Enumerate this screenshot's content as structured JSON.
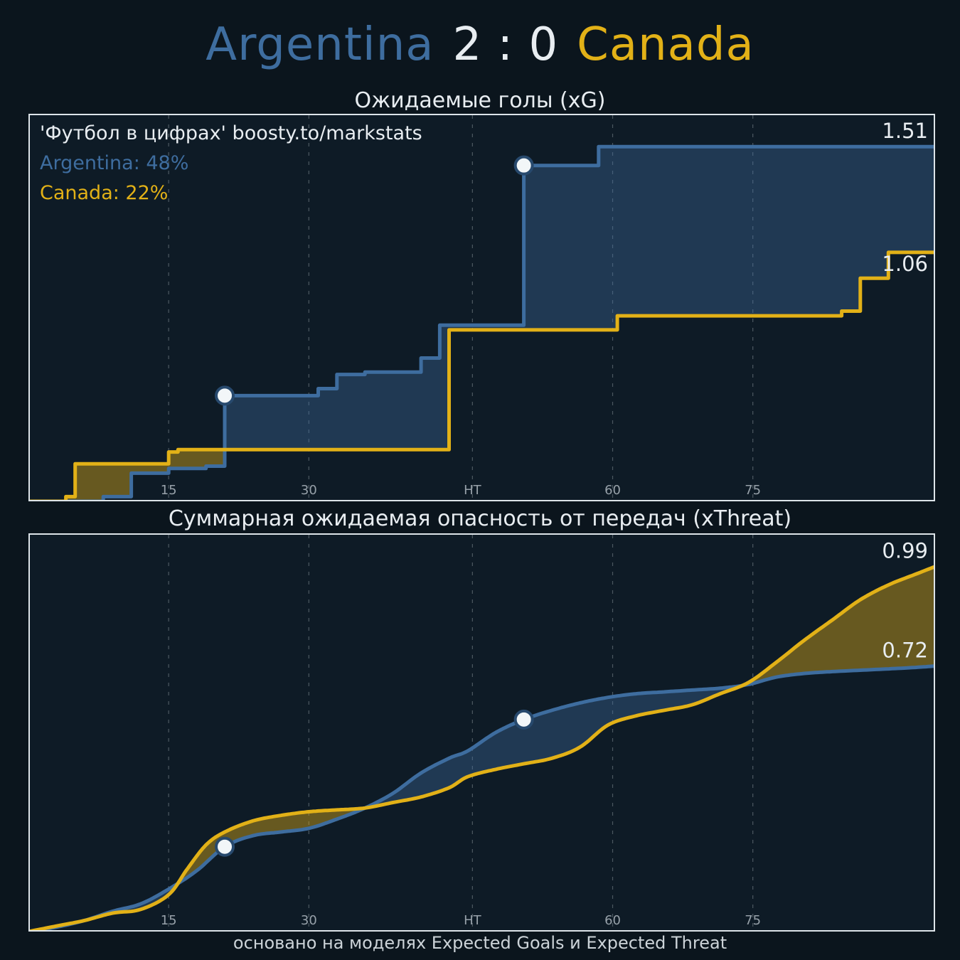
{
  "header": {
    "home_team": "Argentina",
    "score": "2 : 0",
    "away_team": "Canada"
  },
  "watermark": "'Футбол в цифрах' boosty.to/markstats",
  "legend": {
    "home": "Argentina: 48%",
    "away": "Canada: 22%"
  },
  "footer": "основано на моделях Expected Goals и Expected Threat",
  "colors": {
    "background": "#0b151d",
    "plot_background": "#0e1b26",
    "plot_border": "#dde4e9",
    "home": "#3e6d9f",
    "away": "#e2b117",
    "home_fill": "rgba(62,109,159,0.38)",
    "away_fill": "rgba(226,177,23,0.42)",
    "text": "#e8edf1",
    "muted_text": "#97a1a9",
    "footer_text": "#ccd3d8",
    "grid": "#8b959d",
    "marker_fill": "#f2f6f8",
    "marker_stroke": "#27496d"
  },
  "chart_data": [
    {
      "type": "area",
      "style": "step",
      "title": "Ожидаемые голы (xG)",
      "xlabel": "",
      "ylabel": "",
      "x_range": [
        0,
        97
      ],
      "y_range": [
        0,
        1.65
      ],
      "grid": "vertical-dashed",
      "legend_position": "top-left",
      "x_ticks": {
        "positions": [
          15,
          30,
          47.5,
          62.5,
          77.5
        ],
        "labels": [
          "15",
          "30",
          "HT",
          "60",
          "75"
        ]
      },
      "series": [
        {
          "name": "Argentina",
          "final_label": "1.51",
          "label_dy": -12,
          "points": [
            [
              0,
              0
            ],
            [
              8,
              0.02
            ],
            [
              11,
              0.12
            ],
            [
              15,
              0.14
            ],
            [
              19,
              0.15
            ],
            [
              21,
              0.45
            ],
            [
              31,
              0.48
            ],
            [
              33,
              0.54
            ],
            [
              36,
              0.55
            ],
            [
              42,
              0.61
            ],
            [
              44,
              0.75
            ],
            [
              53,
              1.43
            ],
            [
              61,
              1.51
            ]
          ]
        },
        {
          "name": "Canada",
          "final_label": "1.06",
          "label_dy": 26,
          "points": [
            [
              0,
              0
            ],
            [
              4,
              0.02
            ],
            [
              5,
              0.16
            ],
            [
              15,
              0.21
            ],
            [
              16,
              0.22
            ],
            [
              45,
              0.73
            ],
            [
              63,
              0.79
            ],
            [
              87,
              0.81
            ],
            [
              89,
              0.95
            ],
            [
              92,
              1.06
            ]
          ]
        }
      ],
      "goal_markers": [
        [
          21,
          0.45
        ],
        [
          53,
          1.43
        ]
      ]
    },
    {
      "type": "area",
      "style": "smooth",
      "title": "Суммарная ожидаемая опасность от передач (xThreat)",
      "xlabel": "",
      "ylabel": "",
      "x_range": [
        0,
        97
      ],
      "y_range": [
        0,
        1.08
      ],
      "grid": "vertical-dashed",
      "x_ticks": {
        "positions": [
          15,
          30,
          47.5,
          62.5,
          77.5
        ],
        "labels": [
          "15",
          "30",
          "HT",
          "60",
          "75"
        ]
      },
      "series": [
        {
          "name": "Argentina",
          "final_label": "0.72",
          "label_dy": -12,
          "points": [
            [
              0,
              0
            ],
            [
              3,
              0.012
            ],
            [
              6,
              0.03
            ],
            [
              9,
              0.055
            ],
            [
              12,
              0.075
            ],
            [
              15,
              0.115
            ],
            [
              18,
              0.165
            ],
            [
              21,
              0.23
            ],
            [
              24,
              0.26
            ],
            [
              27,
              0.27
            ],
            [
              30,
              0.28
            ],
            [
              33,
              0.305
            ],
            [
              36,
              0.335
            ],
            [
              39,
              0.375
            ],
            [
              42,
              0.43
            ],
            [
              45,
              0.47
            ],
            [
              47,
              0.49
            ],
            [
              50,
              0.54
            ],
            [
              53,
              0.575
            ],
            [
              56,
              0.6
            ],
            [
              59,
              0.62
            ],
            [
              62,
              0.635
            ],
            [
              65,
              0.645
            ],
            [
              68,
              0.65
            ],
            [
              71,
              0.655
            ],
            [
              74,
              0.66
            ],
            [
              77,
              0.67
            ],
            [
              80,
              0.69
            ],
            [
              83,
              0.7
            ],
            [
              86,
              0.705
            ],
            [
              90,
              0.71
            ],
            [
              94,
              0.715
            ],
            [
              97,
              0.72
            ]
          ]
        },
        {
          "name": "Canada",
          "final_label": "0.99",
          "label_dy": -12,
          "points": [
            [
              0,
              0
            ],
            [
              3,
              0.015
            ],
            [
              6,
              0.03
            ],
            [
              9,
              0.05
            ],
            [
              12,
              0.06
            ],
            [
              15,
              0.1
            ],
            [
              17,
              0.17
            ],
            [
              19,
              0.235
            ],
            [
              21,
              0.27
            ],
            [
              24,
              0.3
            ],
            [
              27,
              0.315
            ],
            [
              30,
              0.325
            ],
            [
              33,
              0.33
            ],
            [
              36,
              0.335
            ],
            [
              39,
              0.35
            ],
            [
              42,
              0.365
            ],
            [
              45,
              0.39
            ],
            [
              47,
              0.42
            ],
            [
              50,
              0.44
            ],
            [
              53,
              0.455
            ],
            [
              56,
              0.47
            ],
            [
              59,
              0.5
            ],
            [
              62,
              0.56
            ],
            [
              65,
              0.585
            ],
            [
              68,
              0.6
            ],
            [
              71,
              0.615
            ],
            [
              74,
              0.645
            ],
            [
              77,
              0.675
            ],
            [
              80,
              0.73
            ],
            [
              83,
              0.79
            ],
            [
              86,
              0.845
            ],
            [
              89,
              0.9
            ],
            [
              92,
              0.94
            ],
            [
              95,
              0.97
            ],
            [
              97,
              0.99
            ]
          ]
        }
      ],
      "goal_markers": [
        [
          21,
          0.23
        ],
        [
          53,
          0.575
        ]
      ]
    }
  ]
}
